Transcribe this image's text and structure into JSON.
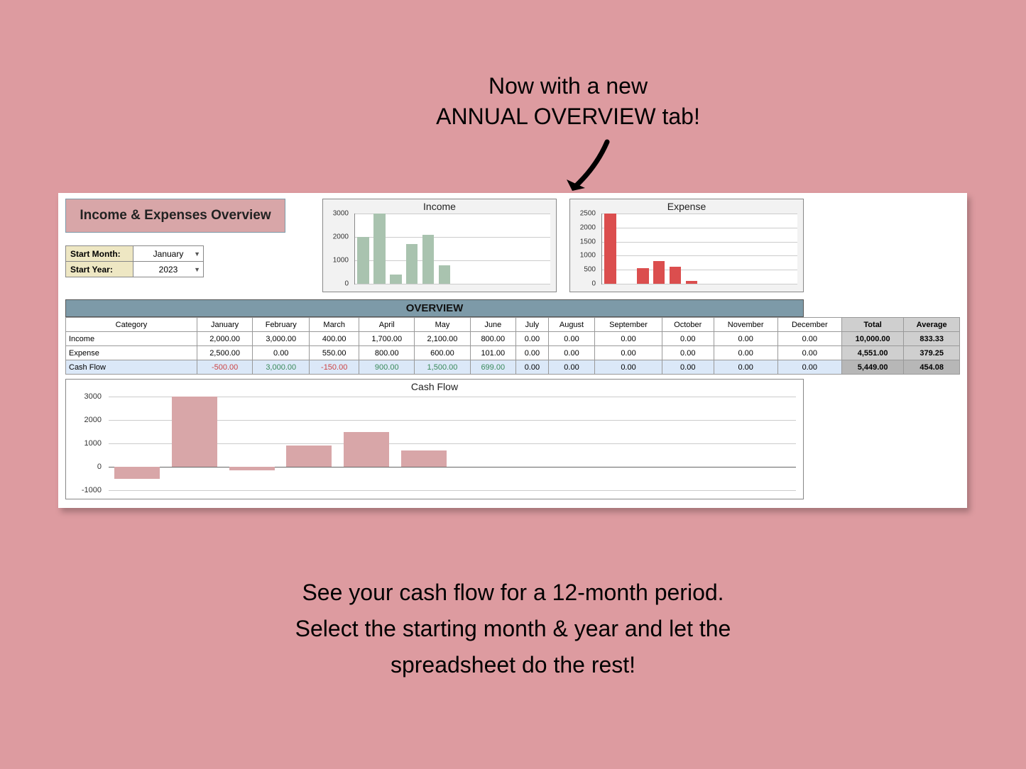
{
  "callout": {
    "line1": "Now with a new",
    "line2": "ANNUAL OVERVIEW tab!"
  },
  "footer": {
    "line1": "See your cash flow for a 12-month period.",
    "line2": "Select the starting month & year and let the",
    "line3": "spreadsheet do the rest!"
  },
  "panel": {
    "title": "Income & Expenses Overview",
    "config": {
      "month_label": "Start Month:",
      "month_value": "January",
      "year_label": "Start Year:",
      "year_value": "2023"
    },
    "income_chart": {
      "title": "Income",
      "type": "bar",
      "ylim": [
        0,
        3000
      ],
      "yticks": [
        0,
        1000,
        2000,
        3000
      ],
      "values": [
        2000,
        3000,
        400,
        1700,
        2100,
        800,
        0,
        0,
        0,
        0,
        0,
        0
      ],
      "bar_color": "#a9c3af",
      "bg": "#f2f2f2"
    },
    "expense_chart": {
      "title": "Expense",
      "type": "bar",
      "ylim": [
        0,
        2500
      ],
      "yticks": [
        0,
        500,
        1000,
        1500,
        2000,
        2500
      ],
      "values": [
        2500,
        0,
        550,
        800,
        600,
        101,
        0,
        0,
        0,
        0,
        0,
        0
      ],
      "bar_color": "#db4e4e",
      "bg": "#f2f2f2"
    },
    "overview": {
      "title": "OVERVIEW",
      "columns": [
        "Category",
        "January",
        "February",
        "March",
        "April",
        "May",
        "June",
        "July",
        "August",
        "September",
        "October",
        "November",
        "December"
      ],
      "totals_headers": [
        "Total",
        "Average"
      ],
      "rows": [
        {
          "cat": "Income",
          "vals": [
            "2,000.00",
            "3,000.00",
            "400.00",
            "1,700.00",
            "2,100.00",
            "800.00",
            "0.00",
            "0.00",
            "0.00",
            "0.00",
            "0.00",
            "0.00"
          ],
          "total": "10,000.00",
          "avg": "833.33"
        },
        {
          "cat": "Expense",
          "vals": [
            "2,500.00",
            "0.00",
            "550.00",
            "800.00",
            "600.00",
            "101.00",
            "0.00",
            "0.00",
            "0.00",
            "0.00",
            "0.00",
            "0.00"
          ],
          "total": "4,551.00",
          "avg": "379.25"
        },
        {
          "cat": "Cash Flow",
          "vals": [
            "-500.00",
            "3,000.00",
            "-150.00",
            "900.00",
            "1,500.00",
            "699.00",
            "0.00",
            "0.00",
            "0.00",
            "0.00",
            "0.00",
            "0.00"
          ],
          "total": "5,449.00",
          "avg": "454.08",
          "cf": true
        }
      ]
    },
    "cashflow_chart": {
      "title": "Cash Flow",
      "type": "bar",
      "ylim": [
        -1000,
        3000
      ],
      "yticks": [
        -1000,
        0,
        1000,
        2000,
        3000
      ],
      "values": [
        -500,
        3000,
        -150,
        900,
        1500,
        699,
        0,
        0,
        0,
        0,
        0,
        0
      ],
      "bar_color": "#d8a6a8"
    }
  },
  "colors": {
    "page_bg": "#dd9ba0",
    "panel_bg": "#ffffff",
    "title_bg": "#d8a6a8",
    "config_label_bg": "#eee7c3",
    "overview_header_bg": "#7d9aa8",
    "totals_bg": "#cfcfcf",
    "cashflow_row_bg": "#dbe8f8"
  }
}
